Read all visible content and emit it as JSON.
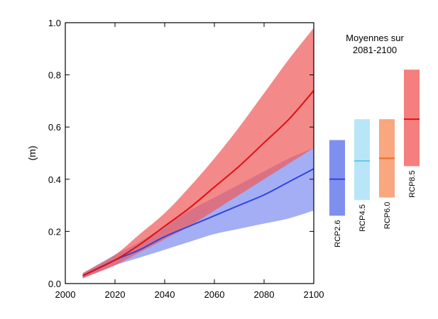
{
  "chart_data": {
    "type": "line",
    "xlim": [
      2000,
      2100
    ],
    "ylim": [
      0.0,
      1.0
    ],
    "ylabel": "(m)",
    "xticks": [
      "2000",
      "2020",
      "2040",
      "2060",
      "2080",
      "2100"
    ],
    "yticks": [
      "0.0",
      "0.2",
      "0.4",
      "0.6",
      "0.8",
      "1.0"
    ],
    "grid": false,
    "x": [
      2007,
      2020,
      2030,
      2040,
      2050,
      2060,
      2070,
      2080,
      2090,
      2100
    ],
    "series": [
      {
        "name": "RCP2.6",
        "color": "#3344dd",
        "band_color": "#7f8ff0",
        "mean": [
          0.03,
          0.09,
          0.13,
          0.18,
          0.22,
          0.26,
          0.3,
          0.34,
          0.39,
          0.44
        ],
        "lower": [
          0.02,
          0.07,
          0.1,
          0.13,
          0.16,
          0.19,
          0.21,
          0.23,
          0.25,
          0.28
        ],
        "upper": [
          0.04,
          0.11,
          0.16,
          0.22,
          0.28,
          0.33,
          0.38,
          0.43,
          0.48,
          0.52
        ]
      },
      {
        "name": "RCP8.5",
        "color": "#e01010",
        "band_color": "#f05b5b",
        "mean": [
          0.03,
          0.09,
          0.15,
          0.22,
          0.29,
          0.37,
          0.45,
          0.54,
          0.63,
          0.74
        ],
        "lower": [
          0.02,
          0.07,
          0.12,
          0.17,
          0.22,
          0.28,
          0.34,
          0.4,
          0.46,
          0.52
        ],
        "upper": [
          0.04,
          0.11,
          0.19,
          0.27,
          0.37,
          0.48,
          0.6,
          0.73,
          0.86,
          0.98
        ]
      }
    ],
    "side_panel": {
      "title_line1": "Moyennes sur",
      "title_line2": "2081-2100",
      "bars": [
        {
          "label": "RCP2.6",
          "mean": 0.4,
          "low": 0.26,
          "high": 0.55,
          "fill": "#7f8ff0",
          "line": "#3344dd"
        },
        {
          "label": "RCP4.5",
          "mean": 0.47,
          "low": 0.32,
          "high": 0.63,
          "fill": "#b8e6f8",
          "line": "#66c7ec"
        },
        {
          "label": "RCP6.0",
          "mean": 0.48,
          "low": 0.33,
          "high": 0.63,
          "fill": "#f8a77e",
          "line": "#ee6a2c"
        },
        {
          "label": "RCP8.5",
          "mean": 0.63,
          "low": 0.45,
          "high": 0.82,
          "fill": "#f57f7f",
          "line": "#e01010"
        }
      ]
    }
  }
}
